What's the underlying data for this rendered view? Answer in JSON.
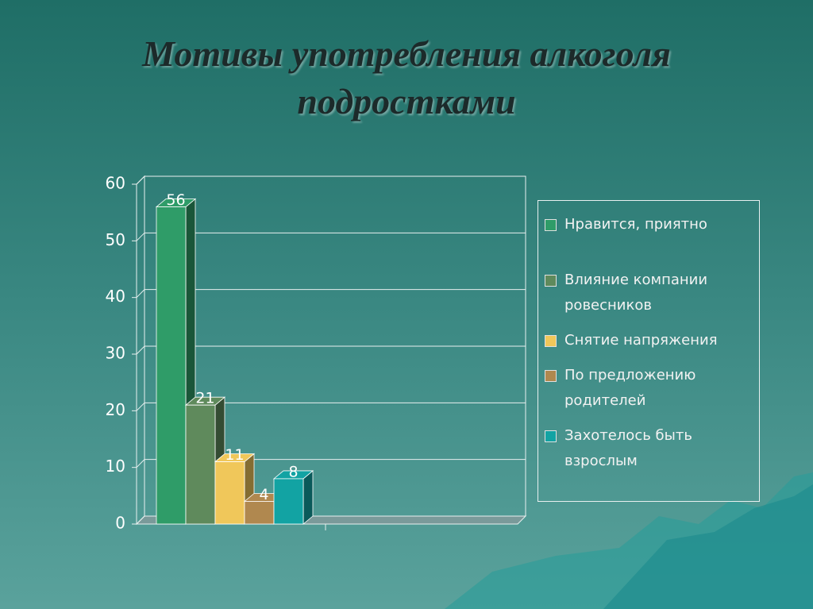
{
  "chart_data": {
    "type": "bar3d",
    "title": "Мотивы употребления алкоголя подростками",
    "categories": [
      null
    ],
    "series": [
      {
        "name": "Нравится, приятно",
        "color": "#2f9c68",
        "values": [
          56
        ]
      },
      {
        "name": "Влияние компании ровесников",
        "color": "#5f8a5c",
        "values": [
          21
        ]
      },
      {
        "name": "Снятие напряжения",
        "color": "#f0c75a",
        "values": [
          11
        ]
      },
      {
        "name": "По предложению родителей",
        "color": "#b0884f",
        "values": [
          4
        ]
      },
      {
        "name": "Захотелось быть взрослым",
        "color": "#12a3a3",
        "values": [
          8
        ]
      }
    ],
    "ylim": [
      0,
      60
    ],
    "yticks": [
      0,
      10,
      20,
      30,
      40,
      50,
      60
    ],
    "grid": true,
    "legend": "right"
  }
}
